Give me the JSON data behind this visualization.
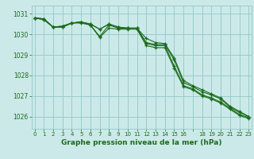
{
  "bg_color": "#cce9e9",
  "grid_color": "#99cccc",
  "line_color": "#1a6b1a",
  "marker_color": "#1a6b1a",
  "title": "Graphe pression niveau de la mer (hPa)",
  "xlabel_color": "#1a6b1a",
  "ylim": [
    1025.4,
    1031.4
  ],
  "xlim": [
    -0.3,
    23.3
  ],
  "yticks": [
    1026,
    1027,
    1028,
    1029,
    1030,
    1031
  ],
  "hours": [
    0,
    1,
    2,
    3,
    4,
    5,
    6,
    7,
    8,
    9,
    10,
    11,
    12,
    13,
    14,
    15,
    16,
    17,
    18,
    19,
    20,
    21,
    22,
    23
  ],
  "series": [
    [
      1030.8,
      1030.7,
      1030.35,
      1030.4,
      1030.55,
      1030.6,
      1030.5,
      1030.25,
      1030.5,
      1030.35,
      1030.3,
      1030.3,
      1029.6,
      1029.5,
      1029.5,
      1028.75,
      1027.65,
      1027.45,
      1027.2,
      1027.05,
      1026.85,
      1026.45,
      1026.2,
      1026.0
    ],
    [
      1030.8,
      1030.75,
      1030.35,
      1030.4,
      1030.55,
      1030.6,
      1030.5,
      1030.25,
      1030.5,
      1030.35,
      1030.3,
      1030.3,
      1029.8,
      1029.6,
      1029.55,
      1028.85,
      1027.75,
      1027.5,
      1027.3,
      1027.1,
      1026.9,
      1026.5,
      1026.25,
      1026.0
    ],
    [
      1030.8,
      1030.75,
      1030.35,
      1030.35,
      1030.55,
      1030.6,
      1030.45,
      1029.9,
      1030.45,
      1030.3,
      1030.3,
      1030.3,
      1029.55,
      1029.45,
      1029.45,
      1028.45,
      1027.5,
      1027.35,
      1027.05,
      1026.9,
      1026.7,
      1026.4,
      1026.1,
      1025.95
    ],
    [
      1030.8,
      1030.75,
      1030.35,
      1030.35,
      1030.55,
      1030.55,
      1030.45,
      1029.85,
      1030.3,
      1030.25,
      1030.25,
      1030.25,
      1029.45,
      1029.35,
      1029.35,
      1028.35,
      1027.45,
      1027.3,
      1027.0,
      1026.85,
      1026.65,
      1026.35,
      1026.05,
      1025.9
    ]
  ],
  "xtick_labels": [
    "0",
    "1",
    "2",
    "3",
    "4",
    "5",
    "6",
    "7",
    "8",
    "9",
    "10",
    "11",
    "12",
    "13",
    "14",
    "15",
    "16",
    "",
    "18",
    "19",
    "20",
    "21",
    "22",
    "23"
  ],
  "ylabel_fontsize": 6,
  "xlabel_fontsize": 6,
  "title_fontsize": 6.5
}
